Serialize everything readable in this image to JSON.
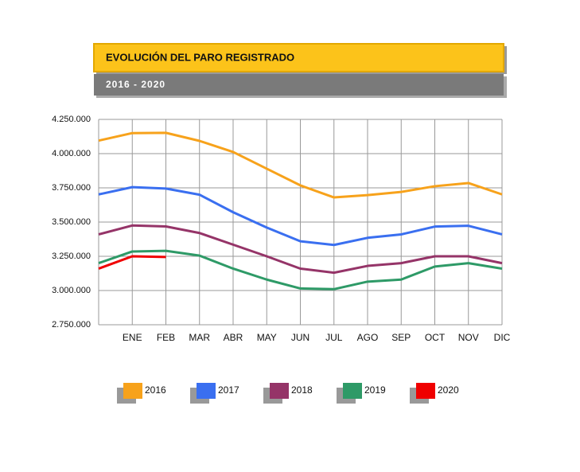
{
  "chart_data": {
    "type": "line",
    "title": "EVOLUCIÓN DEL PARO REGISTRADO",
    "subtitle": "2016 - 2020",
    "categories": [
      null,
      "ENE",
      "FEB",
      "MAR",
      "ABR",
      "MAY",
      "JUN",
      "JUL",
      "AGO",
      "SEP",
      "OCT",
      "NOV",
      "DIC"
    ],
    "ylim": [
      2750000,
      4250000
    ],
    "yticks": [
      {
        "value": 2750000,
        "label": "2.750.000"
      },
      {
        "value": 3000000,
        "label": "3.000.000"
      },
      {
        "value": 3250000,
        "label": "3.250.000"
      },
      {
        "value": 3500000,
        "label": "3.500.000"
      },
      {
        "value": 3750000,
        "label": "3.750.000"
      },
      {
        "value": 4000000,
        "label": "4.000.000"
      },
      {
        "value": 4250000,
        "label": "4.250.000"
      }
    ],
    "grid": true,
    "series": [
      {
        "name": "2016",
        "color": "#f7a21b",
        "values": [
          4095000,
          4150000,
          4152000,
          4093000,
          4012000,
          3890000,
          3768000,
          3680000,
          3697000,
          3720000,
          3762000,
          3785000,
          3702000
        ]
      },
      {
        "name": "2017",
        "color": "#3a6ff0",
        "values": [
          3702000,
          3755000,
          3745000,
          3700000,
          3572000,
          3460000,
          3360000,
          3333000,
          3385000,
          3410000,
          3467000,
          3473000,
          3410000
        ]
      },
      {
        "name": "2018",
        "color": "#953468",
        "values": [
          3410000,
          3475000,
          3468000,
          3420000,
          3335000,
          3250000,
          3160000,
          3130000,
          3180000,
          3200000,
          3250000,
          3250000,
          3200000
        ]
      },
      {
        "name": "2019",
        "color": "#2e9a67",
        "values": [
          3200000,
          3285000,
          3290000,
          3255000,
          3160000,
          3080000,
          3015000,
          3010000,
          3065000,
          3080000,
          3175000,
          3200000,
          3160000
        ]
      },
      {
        "name": "2020",
        "color": "#f00000",
        "values": [
          3160000,
          3250000,
          3245000,
          null,
          null,
          null,
          null,
          null,
          null,
          null,
          null,
          null,
          null
        ]
      }
    ]
  }
}
